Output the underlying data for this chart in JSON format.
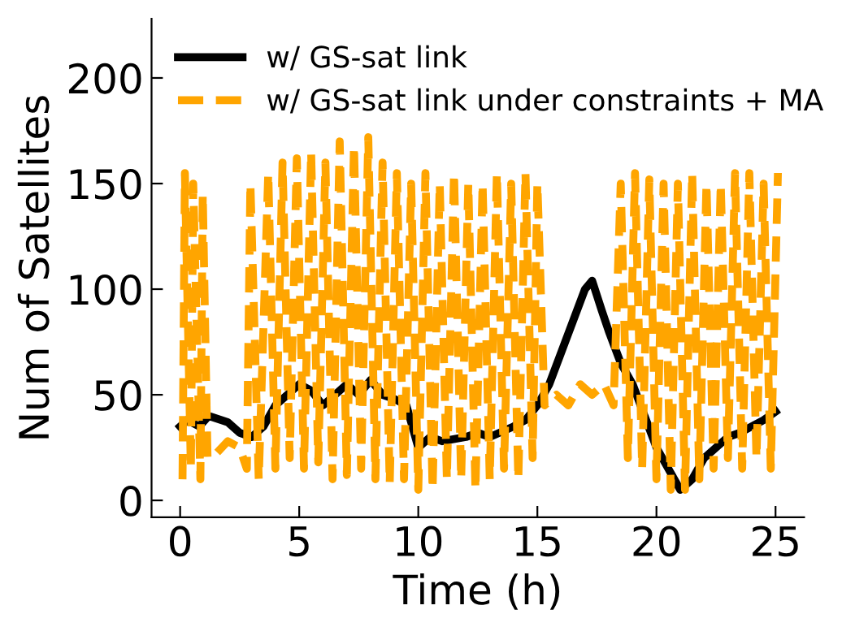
{
  "chart_data": {
    "type": "line",
    "xlabel": "Time (h)",
    "ylabel": "Num of Satellites",
    "xlim": [
      -1.2,
      26.2
    ],
    "ylim": [
      -8,
      228
    ],
    "xticks": [
      0,
      5,
      10,
      15,
      20,
      25
    ],
    "yticks": [
      0,
      50,
      100,
      150,
      200
    ],
    "grid": false,
    "legend": "top left",
    "marker": "none",
    "series": [
      {
        "name": "w/ GS-sat link",
        "color": "#000000",
        "line_style": "solid",
        "x": [
          0,
          0.3,
          0.8,
          1.2,
          2,
          2.5,
          3,
          3.5,
          4,
          4.5,
          5,
          5.5,
          6,
          6.5,
          7,
          7.5,
          8,
          8.5,
          9,
          9.5,
          10,
          10.5,
          11,
          12,
          12.5,
          13,
          14,
          14.5,
          15,
          15.5,
          16,
          16.5,
          17,
          17.3,
          17.7,
          18,
          18.5,
          19,
          19.5,
          20,
          20.5,
          21,
          21.5,
          22,
          22.5,
          23,
          23.5,
          24,
          24.5,
          25
        ],
        "values": [
          35,
          38,
          35,
          40,
          37,
          32,
          30,
          35,
          45,
          50,
          55,
          52,
          45,
          50,
          55,
          50,
          57,
          50,
          48,
          45,
          25,
          30,
          28,
          30,
          32,
          30,
          35,
          38,
          45,
          55,
          70,
          85,
          100,
          104,
          90,
          80,
          65,
          55,
          40,
          25,
          15,
          5,
          10,
          20,
          25,
          30,
          32,
          35,
          38,
          42
        ]
      },
      {
        "name": "w/ GS-sat link under constraints + MA",
        "color": "#ffa500",
        "line_style": "dashed",
        "x": [
          0.1,
          0.2,
          0.45,
          0.55,
          0.85,
          0.95,
          1.15,
          1.5,
          2.0,
          2.5,
          2.8,
          2.95,
          3.3,
          3.7,
          4.0,
          4.3,
          4.6,
          4.9,
          5.2,
          5.5,
          5.8,
          6.1,
          6.4,
          6.7,
          7.0,
          7.3,
          7.6,
          7.9,
          8.2,
          8.5,
          8.8,
          9.1,
          9.4,
          9.7,
          10.0,
          10.3,
          10.6,
          10.9,
          11.2,
          11.5,
          11.8,
          12.1,
          12.4,
          12.7,
          13.0,
          13.3,
          13.6,
          13.9,
          14.2,
          14.5,
          14.8,
          15.0,
          15.3,
          15.8,
          16.3,
          16.8,
          17.3,
          17.8,
          18.2,
          18.5,
          18.8,
          19.1,
          19.4,
          19.7,
          20.0,
          20.3,
          20.6,
          20.9,
          21.2,
          21.5,
          21.8,
          22.1,
          22.4,
          22.7,
          23.0,
          23.3,
          23.6,
          23.9,
          24.2,
          24.5,
          24.8,
          25.1
        ],
        "values": [
          10,
          155,
          15,
          150,
          10,
          145,
          20,
          22,
          28,
          25,
          15,
          150,
          10,
          155,
          15,
          160,
          20,
          162,
          15,
          165,
          18,
          160,
          10,
          170,
          12,
          168,
          15,
          172,
          10,
          160,
          8,
          155,
          10,
          150,
          5,
          155,
          5,
          150,
          10,
          155,
          10,
          150,
          5,
          150,
          10,
          155,
          15,
          150,
          10,
          155,
          20,
          150,
          45,
          50,
          45,
          55,
          50,
          55,
          45,
          150,
          20,
          155,
          15,
          152,
          10,
          150,
          5,
          150,
          5,
          155,
          10,
          150,
          15,
          150,
          20,
          155,
          15,
          155,
          20,
          150,
          15,
          155
        ]
      }
    ]
  }
}
